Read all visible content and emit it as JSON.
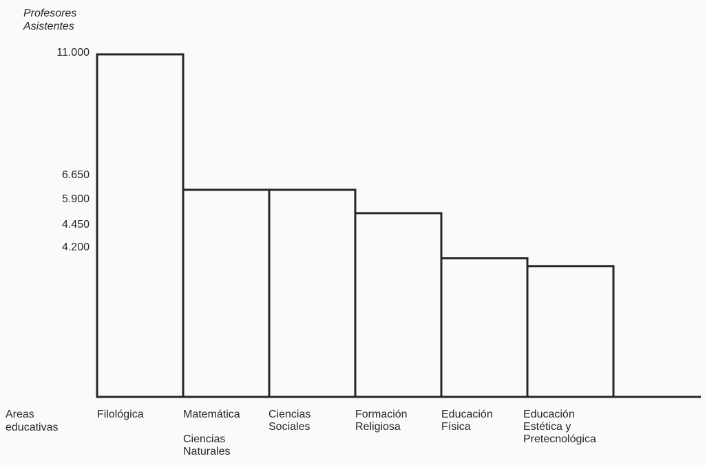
{
  "chart_data": {
    "type": "bar",
    "ylabel": [
      "Profesores",
      "Asistentes"
    ],
    "xlabel": [
      "Areas",
      "educativas"
    ],
    "ylim": [
      0,
      11000
    ],
    "yticks": [
      "11.000",
      "6.650",
      "5.900",
      "4.450",
      "4.200"
    ],
    "categories": [
      [
        "Filológica"
      ],
      [
        "Matemática",
        "Ciencias",
        "Naturales"
      ],
      [
        "Ciencias",
        "Sociales"
      ],
      [
        "Formación",
        "Religiosa"
      ],
      [
        "Educación",
        "Física"
      ],
      [
        "Educación",
        "Estética y",
        "Pretecnológica"
      ]
    ],
    "values": [
      11000,
      6650,
      6650,
      5900,
      4450,
      4200
    ],
    "grid": false,
    "color": "#262626"
  }
}
